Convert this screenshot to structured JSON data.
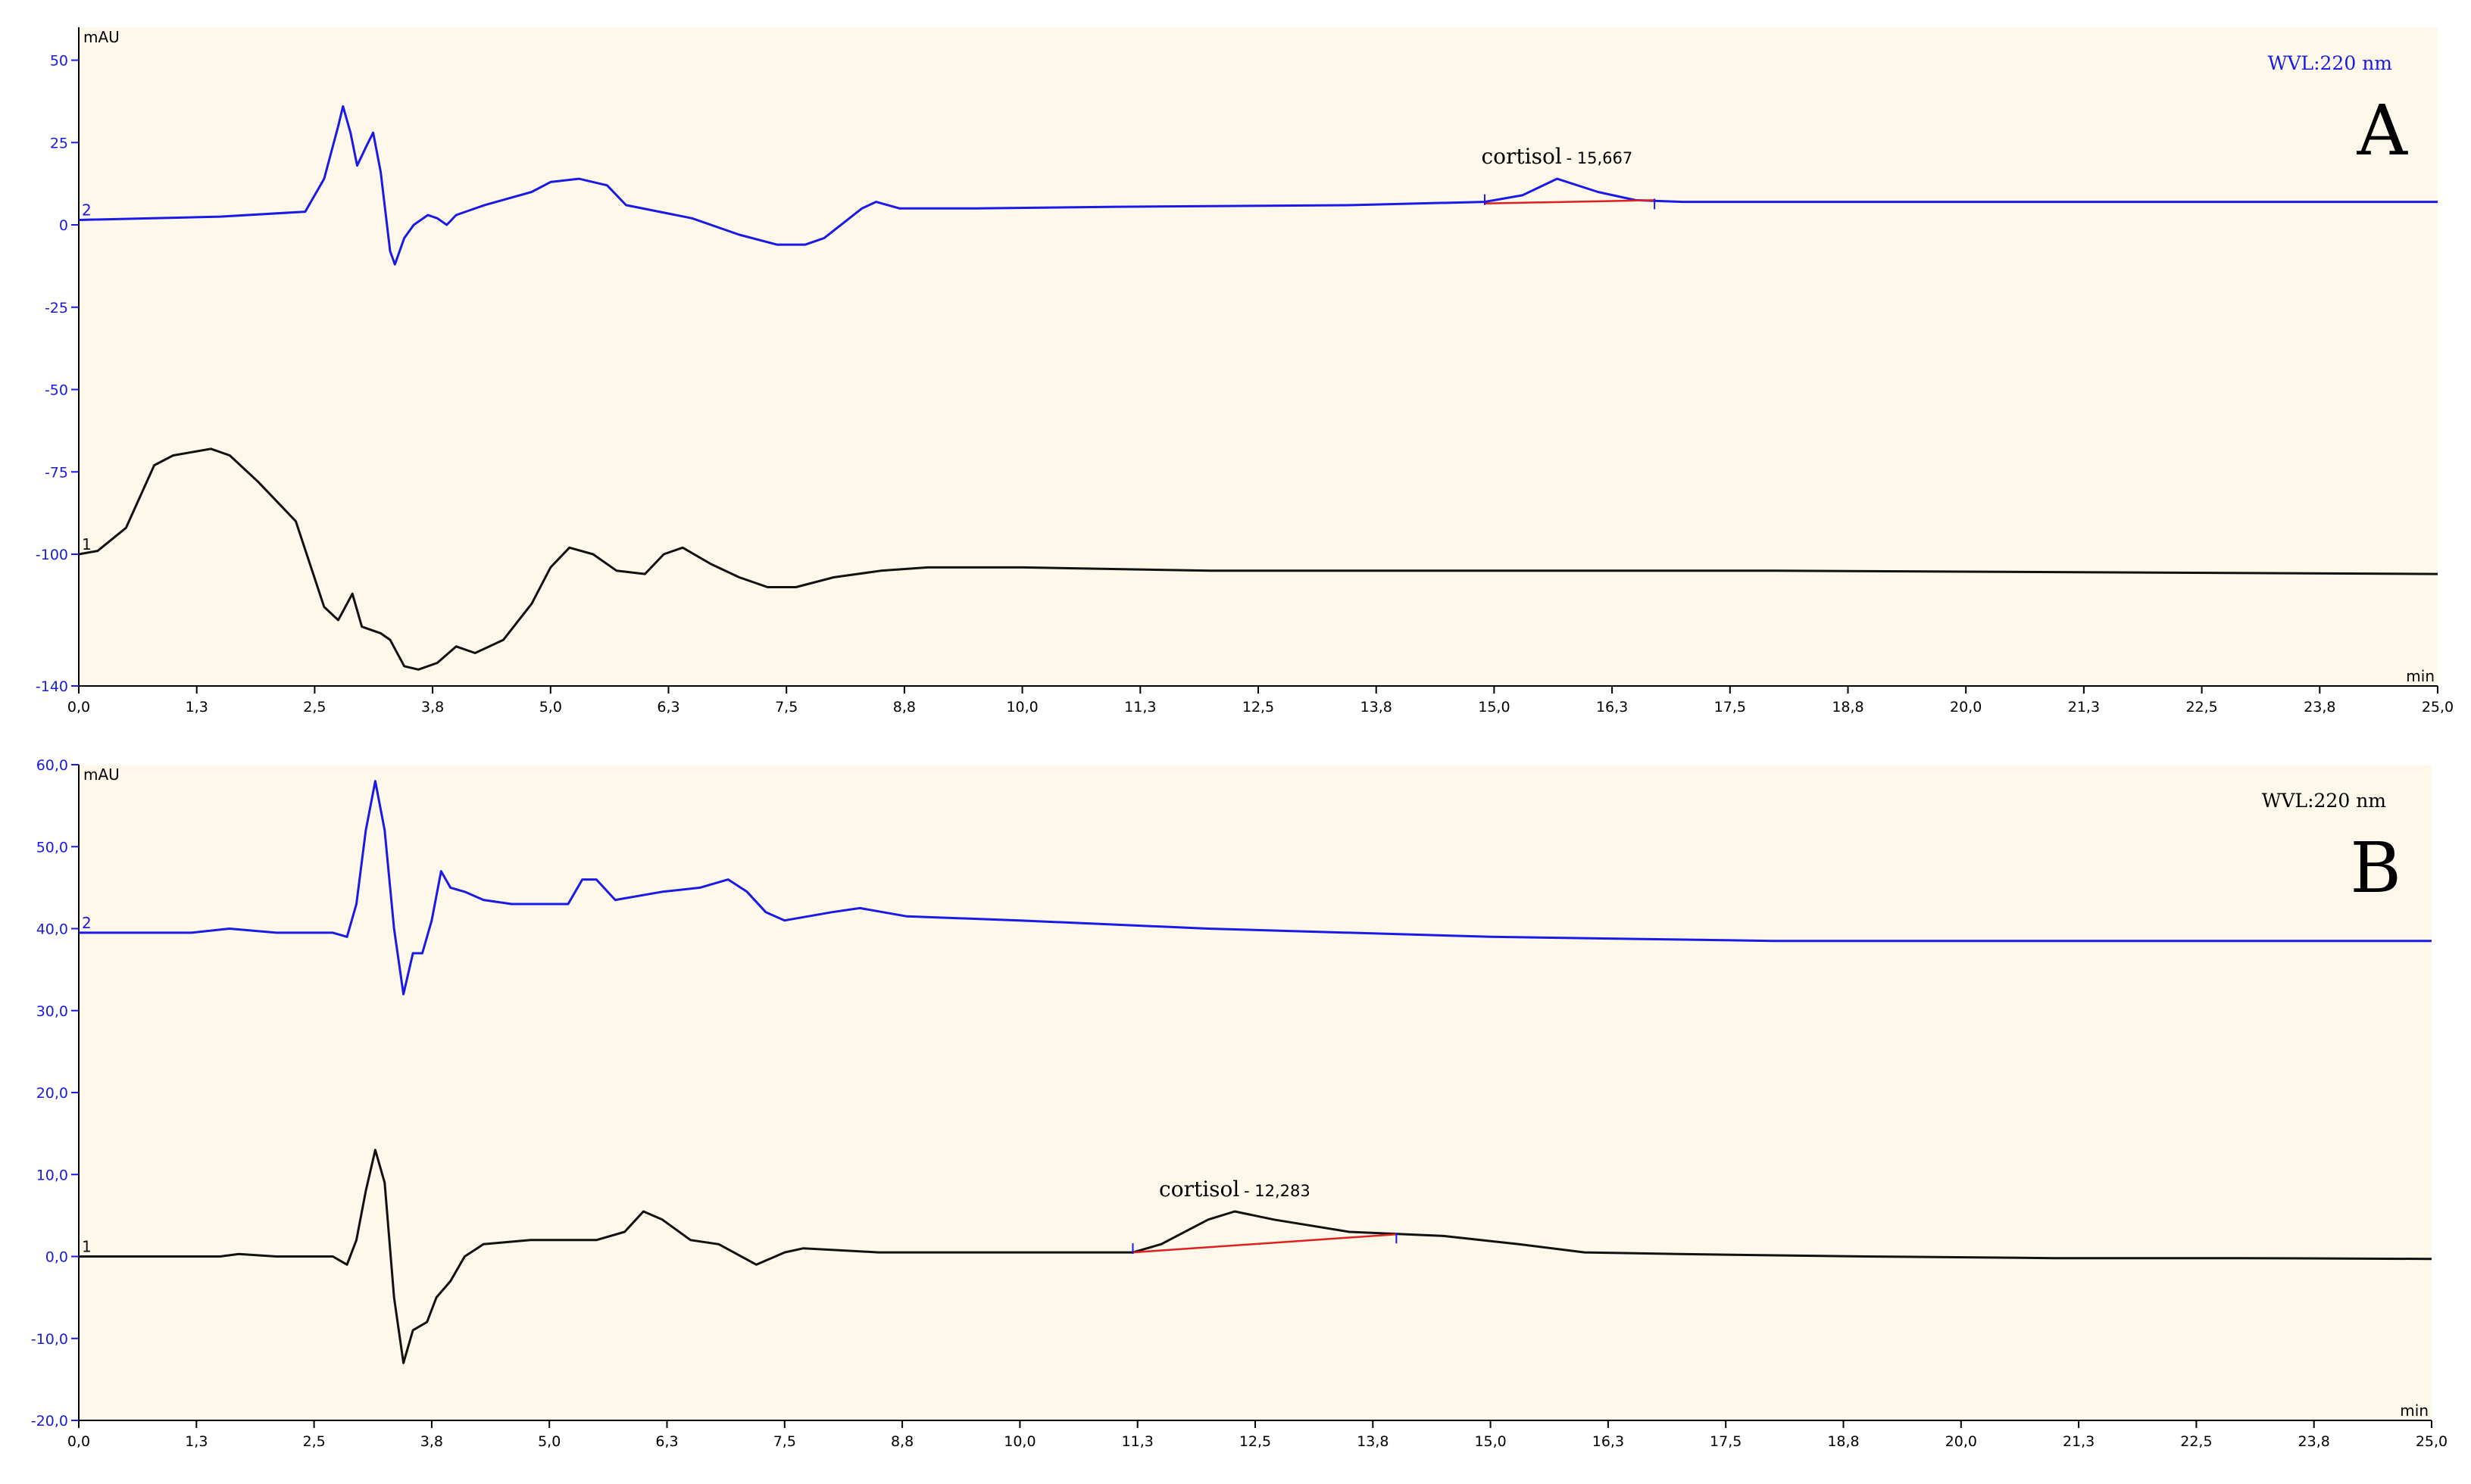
{
  "chart_data": [
    {
      "type": "line",
      "panel_label": "A",
      "wavelength_label": "WVL:220 nm",
      "y_unit": "mAU",
      "x_unit": "min",
      "xlim": [
        0,
        25
      ],
      "ylim": [
        -140,
        60
      ],
      "x_ticks": [
        "0,0",
        "1,3",
        "2,5",
        "3,8",
        "5,0",
        "6,3",
        "7,5",
        "8,8",
        "10,0",
        "11,3",
        "12,5",
        "13,8",
        "15,0",
        "16,3",
        "17,5",
        "18,8",
        "20,0",
        "21,3",
        "22,5",
        "23,8",
        "25,0"
      ],
      "y_ticks": [
        {
          "value": 50,
          "label": "50"
        },
        {
          "value": 25,
          "label": "25"
        },
        {
          "value": 0,
          "label": "0"
        },
        {
          "value": -25,
          "label": "-25"
        },
        {
          "value": -50,
          "label": "-50"
        },
        {
          "value": -75,
          "label": "-75"
        },
        {
          "value": -100,
          "label": "-100"
        },
        {
          "value": -140,
          "label": "-140"
        }
      ],
      "series": [
        {
          "id": "2",
          "color": "#1a1ae6",
          "points": [
            [
              0,
              1.5
            ],
            [
              1.5,
              2.5
            ],
            [
              2.4,
              4
            ],
            [
              2.6,
              14
            ],
            [
              2.75,
              30
            ],
            [
              2.8,
              36
            ],
            [
              2.88,
              28
            ],
            [
              2.95,
              18
            ],
            [
              3.05,
              24
            ],
            [
              3.12,
              28
            ],
            [
              3.2,
              16
            ],
            [
              3.3,
              -8
            ],
            [
              3.35,
              -12
            ],
            [
              3.45,
              -4
            ],
            [
              3.55,
              0
            ],
            [
              3.7,
              3
            ],
            [
              3.8,
              2
            ],
            [
              3.9,
              0
            ],
            [
              4.0,
              3
            ],
            [
              4.3,
              6
            ],
            [
              4.8,
              10
            ],
            [
              5.0,
              13
            ],
            [
              5.3,
              14
            ],
            [
              5.6,
              12
            ],
            [
              5.8,
              6
            ],
            [
              6.5,
              2
            ],
            [
              7.0,
              -3
            ],
            [
              7.4,
              -6
            ],
            [
              7.7,
              -6
            ],
            [
              7.9,
              -4
            ],
            [
              8.3,
              5
            ],
            [
              8.45,
              7
            ],
            [
              8.7,
              5
            ],
            [
              9.5,
              5
            ],
            [
              11.0,
              5.5
            ],
            [
              13.5,
              6
            ],
            [
              14.9,
              7
            ],
            [
              15.3,
              9
            ],
            [
              15.667,
              14
            ],
            [
              16.1,
              10
            ],
            [
              16.5,
              7.5
            ],
            [
              17,
              7
            ],
            [
              20,
              7
            ],
            [
              25,
              7
            ]
          ]
        },
        {
          "id": "1",
          "color": "#111111",
          "points": [
            [
              0,
              -100
            ],
            [
              0.2,
              -99
            ],
            [
              0.5,
              -92
            ],
            [
              0.8,
              -73
            ],
            [
              1.0,
              -70
            ],
            [
              1.4,
              -68
            ],
            [
              1.6,
              -70
            ],
            [
              1.9,
              -78
            ],
            [
              2.3,
              -90
            ],
            [
              2.6,
              -116
            ],
            [
              2.75,
              -120
            ],
            [
              2.9,
              -112
            ],
            [
              3.0,
              -122
            ],
            [
              3.2,
              -124
            ],
            [
              3.3,
              -126
            ],
            [
              3.45,
              -134
            ],
            [
              3.6,
              -135
            ],
            [
              3.8,
              -133
            ],
            [
              4.0,
              -128
            ],
            [
              4.2,
              -130
            ],
            [
              4.5,
              -126
            ],
            [
              4.8,
              -115
            ],
            [
              5.0,
              -104
            ],
            [
              5.2,
              -98
            ],
            [
              5.45,
              -100
            ],
            [
              5.7,
              -105
            ],
            [
              6.0,
              -106
            ],
            [
              6.2,
              -100
            ],
            [
              6.4,
              -98
            ],
            [
              6.7,
              -103
            ],
            [
              7.0,
              -107
            ],
            [
              7.3,
              -110
            ],
            [
              7.6,
              -110
            ],
            [
              8.0,
              -107
            ],
            [
              8.5,
              -105
            ],
            [
              9.0,
              -104
            ],
            [
              10.0,
              -104
            ],
            [
              12.0,
              -105
            ],
            [
              15.0,
              -105
            ],
            [
              18.0,
              -105
            ],
            [
              25.0,
              -106
            ]
          ]
        }
      ],
      "annotations": [
        {
          "series": "2",
          "name": "cortisol",
          "rt_label": "15,667",
          "rt": 15.667,
          "baseline": {
            "start": [
              14.9,
              6.5
            ],
            "end": [
              16.7,
              7.5
            ]
          }
        }
      ]
    },
    {
      "type": "line",
      "panel_label": "B",
      "wavelength_label": "WVL:220 nm",
      "y_unit": "mAU",
      "x_unit": "min",
      "xlim": [
        0,
        25
      ],
      "ylim": [
        -20,
        60
      ],
      "x_ticks": [
        "0,0",
        "1,3",
        "2,5",
        "3,8",
        "5,0",
        "6,3",
        "7,5",
        "8,8",
        "10,0",
        "11,3",
        "12,5",
        "13,8",
        "15,0",
        "16,3",
        "17,5",
        "18,8",
        "20,0",
        "21,3",
        "22,5",
        "23,8",
        "25,0"
      ],
      "y_ticks": [
        {
          "value": 60,
          "label": "60,0"
        },
        {
          "value": 50,
          "label": "50,0"
        },
        {
          "value": 40,
          "label": "40,0"
        },
        {
          "value": 30,
          "label": "30,0"
        },
        {
          "value": 20,
          "label": "20,0"
        },
        {
          "value": 10,
          "label": "10,0"
        },
        {
          "value": 0,
          "label": "0,0"
        },
        {
          "value": -10,
          "label": "-10,0"
        },
        {
          "value": -20,
          "label": "-20,0"
        }
      ],
      "series": [
        {
          "id": "2",
          "color": "#1a1ae6",
          "points": [
            [
              0,
              39.5
            ],
            [
              1.2,
              39.5
            ],
            [
              1.6,
              40
            ],
            [
              2.1,
              39.5
            ],
            [
              2.7,
              39.5
            ],
            [
              2.85,
              39
            ],
            [
              2.95,
              43
            ],
            [
              3.05,
              52
            ],
            [
              3.15,
              58
            ],
            [
              3.25,
              52
            ],
            [
              3.35,
              40
            ],
            [
              3.45,
              32
            ],
            [
              3.55,
              37
            ],
            [
              3.65,
              37
            ],
            [
              3.75,
              41
            ],
            [
              3.85,
              47
            ],
            [
              3.95,
              45
            ],
            [
              4.1,
              44.5
            ],
            [
              4.3,
              43.5
            ],
            [
              4.6,
              43
            ],
            [
              5.2,
              43
            ],
            [
              5.35,
              46
            ],
            [
              5.5,
              46
            ],
            [
              5.7,
              43.5
            ],
            [
              6.2,
              44.5
            ],
            [
              6.6,
              45
            ],
            [
              6.9,
              46
            ],
            [
              7.1,
              44.5
            ],
            [
              7.3,
              42
            ],
            [
              7.5,
              41
            ],
            [
              8.0,
              42
            ],
            [
              8.3,
              42.5
            ],
            [
              8.8,
              41.5
            ],
            [
              10.0,
              41
            ],
            [
              12.0,
              40
            ],
            [
              15.0,
              39
            ],
            [
              18.0,
              38.5
            ],
            [
              20.0,
              38.5
            ],
            [
              23.0,
              38.5
            ],
            [
              25.0,
              38.5
            ]
          ]
        },
        {
          "id": "1",
          "color": "#111111",
          "points": [
            [
              0,
              0
            ],
            [
              1.5,
              0
            ],
            [
              1.7,
              0.3
            ],
            [
              2.1,
              0
            ],
            [
              2.7,
              0
            ],
            [
              2.85,
              -1
            ],
            [
              2.95,
              2
            ],
            [
              3.05,
              8
            ],
            [
              3.15,
              13
            ],
            [
              3.25,
              9
            ],
            [
              3.35,
              -5
            ],
            [
              3.45,
              -13
            ],
            [
              3.55,
              -9
            ],
            [
              3.7,
              -8
            ],
            [
              3.8,
              -5
            ],
            [
              3.95,
              -3
            ],
            [
              4.1,
              0
            ],
            [
              4.3,
              1.5
            ],
            [
              4.8,
              2
            ],
            [
              5.5,
              2
            ],
            [
              5.8,
              3
            ],
            [
              6.0,
              5.5
            ],
            [
              6.2,
              4.5
            ],
            [
              6.5,
              2
            ],
            [
              6.8,
              1.5
            ],
            [
              7.2,
              -1
            ],
            [
              7.5,
              0.5
            ],
            [
              7.7,
              1
            ],
            [
              8.5,
              0.5
            ],
            [
              10.0,
              0.5
            ],
            [
              11.2,
              0.5
            ],
            [
              11.5,
              1.5
            ],
            [
              12.0,
              4.5
            ],
            [
              12.283,
              5.5
            ],
            [
              12.7,
              4.5
            ],
            [
              13.5,
              3
            ],
            [
              14.5,
              2.5
            ],
            [
              15.3,
              1.5
            ],
            [
              16.0,
              0.5
            ],
            [
              17.0,
              0.3
            ],
            [
              19.0,
              0
            ],
            [
              21.0,
              -0.2
            ],
            [
              23.0,
              -0.2
            ],
            [
              25.0,
              -0.3
            ]
          ]
        }
      ],
      "annotations": [
        {
          "series": "1",
          "name": "cortisol",
          "rt_label": "12,283",
          "rt": 12.283,
          "baseline": {
            "start": [
              11.2,
              0.5
            ],
            "end": [
              14.0,
              2.7
            ]
          }
        }
      ]
    }
  ]
}
